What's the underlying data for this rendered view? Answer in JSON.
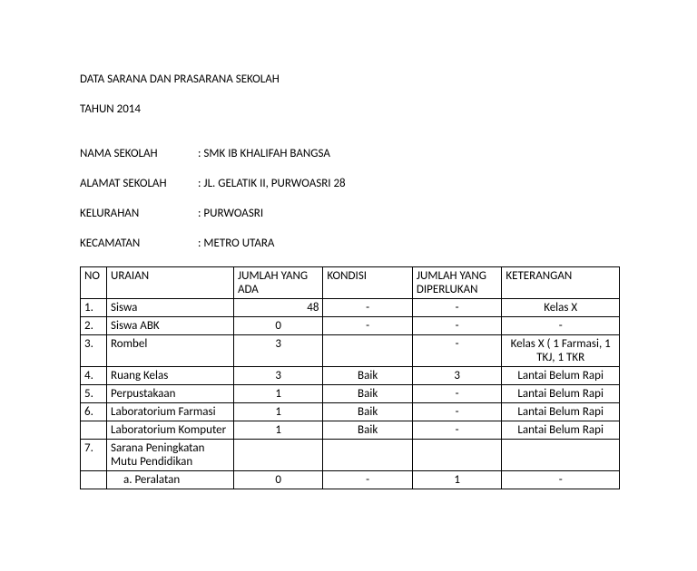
{
  "title1": "DATA SARANA DAN PRASARANA SEKOLAH",
  "title2": "TAHUN 2014",
  "info": {
    "nama_label": "NAMA SEKOLAH",
    "nama_value": ": SMK IB KHALIFAH BANGSA",
    "alamat_label": "ALAMAT SEKOLAH",
    "alamat_value": ": JL. GELATIK II, PURWOASRI 28",
    "kelurahan_label": "KELURAHAN",
    "kelurahan_value": ": PURWOASRI",
    "kecamatan_label": "KECAMATAN",
    "kecamatan_value": ": METRO UTARA"
  },
  "table": {
    "headers": {
      "no": "NO",
      "uraian": "URAIAN",
      "jumlah_ada": "JUMLAH YANG ADA",
      "kondisi": "KONDISI",
      "jumlah_diperlukan": "JUMLAH YANG DIPERLUKAN",
      "keterangan": "KETERANGAN"
    },
    "rows": [
      {
        "no": "1.",
        "uraian": "Siswa",
        "ada": "48",
        "kondisi": "-",
        "dip": "-",
        "ket": "Kelas X",
        "ada_align": "right"
      },
      {
        "no": "2.",
        "uraian": "Siswa ABK",
        "ada": "0",
        "kondisi": "-",
        "dip": "-",
        "ket": "-"
      },
      {
        "no": "3.",
        "uraian": "Rombel",
        "ada": "3",
        "kondisi": "",
        "dip": "-",
        "ket": "Kelas X ( 1 Farmasi, 1 TKJ, 1 TKR"
      },
      {
        "no": "4.",
        "uraian": "Ruang Kelas",
        "ada": "3",
        "kondisi": "Baik",
        "dip": "3",
        "ket": "Lantai Belum Rapi"
      },
      {
        "no": "5.",
        "uraian": "Perpustakaan",
        "ada": "1",
        "kondisi": "Baik",
        "dip": "-",
        "ket": "Lantai Belum Rapi"
      },
      {
        "no": "6.",
        "uraian": "Laboratorium Farmasi",
        "ada": "1",
        "kondisi": "Baik",
        "dip": "-",
        "ket": "Lantai Belum Rapi"
      },
      {
        "no": "",
        "uraian": "Laboratorium Komputer",
        "ada": "1",
        "kondisi": "Baik",
        "dip": "-",
        "ket": "Lantai Belum Rapi"
      },
      {
        "no": "7.",
        "uraian": "Sarana Peningkatan Mutu Pendidikan",
        "ada": "",
        "kondisi": "",
        "dip": "",
        "ket": ""
      },
      {
        "no": "",
        "uraian": "a.   Peralatan",
        "ada": "0",
        "kondisi": "-",
        "dip": "1",
        "ket": "-",
        "indent": true
      }
    ]
  },
  "style": {
    "font_family": "Calibri, Arial, sans-serif",
    "font_size_pt": 10,
    "text_color": "#000000",
    "background_color": "#ffffff",
    "border_color": "#000000"
  }
}
